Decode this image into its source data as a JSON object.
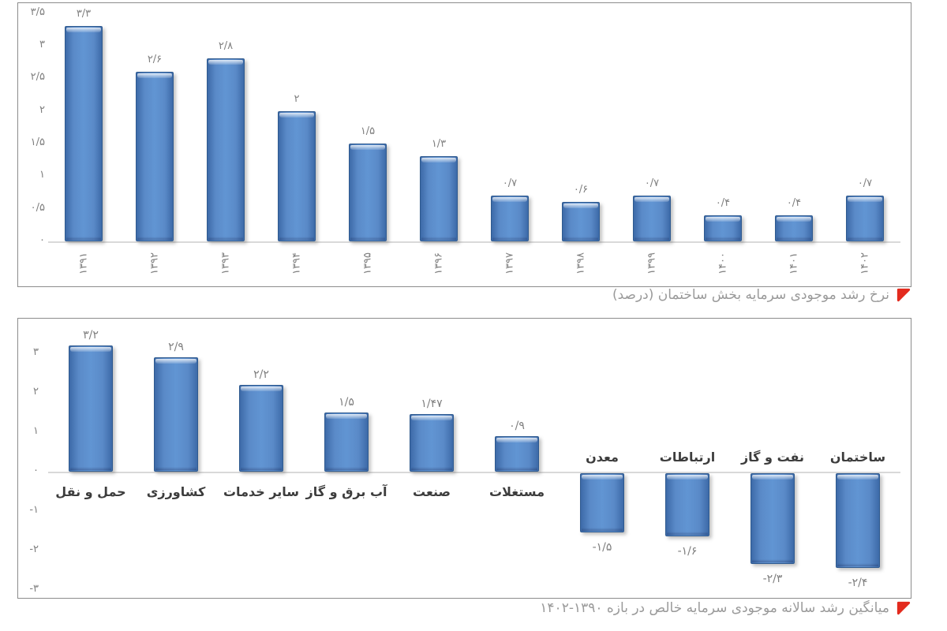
{
  "colors": {
    "background": "#ffffff",
    "bar_fill": "#4f81bd",
    "bar_border": "#2f5a8f",
    "axis_text": "#808080",
    "value_label_text": "#7f7f7f",
    "category_text": "#3d3d3d",
    "caption_text": "#9a9a9a",
    "flag_red": "#e32b1e",
    "axis_line": "#d9d9d9",
    "box_border": "#8c8c8c"
  },
  "icons": [
    {
      "name": "red-flag-icon",
      "shape": "upper-left-triangle",
      "color": "#e32b1e"
    }
  ],
  "chart_data": [
    {
      "type": "bar",
      "title": "نرخ رشد موجودی سرمایه بخش ساختمان (درصد)",
      "categories": [
        "۱۳۹۱",
        "۱۳۹۲",
        "۱۳۹۳",
        "۱۳۹۴",
        "۱۳۹۵",
        "۱۳۹۶",
        "۱۳۹۷",
        "۱۳۹۸",
        "۱۳۹۹",
        "۱۴۰۰",
        "۱۴۰۱",
        "۱۴۰۲"
      ],
      "values": [
        3.3,
        2.6,
        2.8,
        2,
        1.5,
        1.3,
        0.7,
        0.6,
        0.7,
        0.4,
        0.4,
        0.7
      ],
      "value_labels": [
        "۳/۳",
        "۲/۶",
        "۲/۸",
        "۲",
        "۱/۵",
        "۱/۳",
        "۰/۷",
        "۰/۶",
        "۰/۷",
        "۰/۴",
        "۰/۴",
        "۰/۷"
      ],
      "xlabel": "",
      "ylabel": "",
      "ylim": [
        0,
        3.5
      ],
      "yticks": [
        {
          "value": 3.5,
          "label": "۳/۵"
        },
        {
          "value": 3,
          "label": "۳"
        },
        {
          "value": 2.5,
          "label": "۲/۵"
        },
        {
          "value": 2,
          "label": "۲"
        },
        {
          "value": 1.5,
          "label": "۱/۵"
        },
        {
          "value": 1,
          "label": "۱"
        },
        {
          "value": 0.5,
          "label": "۰/۵"
        },
        {
          "value": 0,
          "label": "۰"
        }
      ],
      "grid": false,
      "legend": false,
      "category_label_rotation": -90
    },
    {
      "type": "bar",
      "title": "میانگین رشد سالانه موجودی سرمایه خالص در بازه ۱۳۹۰-۱۴۰۲",
      "categories": [
        "حمل و نقل",
        "کشاورزی",
        "سایر خدمات",
        "آب برق و گاز",
        "صنعت",
        "مستغلات",
        "معدن",
        "ارتباطات",
        "نفت و گاز",
        "ساختمان"
      ],
      "values": [
        3.2,
        2.9,
        2.2,
        1.5,
        1.47,
        0.9,
        -1.5,
        -1.6,
        -2.3,
        -2.4
      ],
      "value_labels": [
        "۳/۲",
        "۲/۹",
        "۲/۲",
        "۱/۵",
        "۱/۴۷",
        "۰/۹",
        "-۱/۵",
        "-۱/۶",
        "-۲/۳",
        "-۲/۴"
      ],
      "xlabel": "",
      "ylabel": "",
      "ylim": [
        -3,
        3.5
      ],
      "yticks": [
        {
          "value": 3,
          "label": "۳"
        },
        {
          "value": 2,
          "label": "۲"
        },
        {
          "value": 1,
          "label": "۱"
        },
        {
          "value": 0,
          "label": "۰"
        },
        {
          "value": -1,
          "label": "-۱"
        },
        {
          "value": -2,
          "label": "-۲"
        },
        {
          "value": -3,
          "label": "-۳"
        }
      ],
      "grid": false,
      "legend": false,
      "category_label_rotation": 0
    }
  ]
}
